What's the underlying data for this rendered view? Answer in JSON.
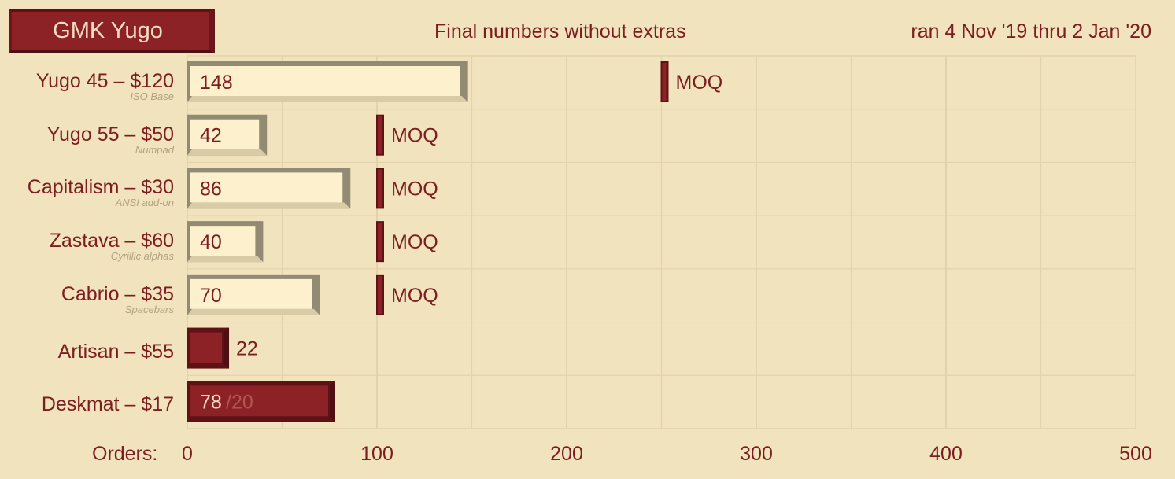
{
  "header": {
    "title": "GMK Yugo",
    "subtitle": "Final numbers without extras",
    "date_range": "ran 4 Nov '19 thru 2 Jan '20"
  },
  "axis": {
    "x_label": "Orders:",
    "ticks": [
      "0",
      "100",
      "200",
      "300",
      "400",
      "500"
    ]
  },
  "colors": {
    "background": "#f1e3bd",
    "bar_light": "#fdf0cc",
    "bar_light_frame": "#938a73",
    "bar_dark": "#8d2226",
    "bar_dark_frame": "#5e1215",
    "moq_marker": "#7c1d1f",
    "grid": "#e3d3aa"
  },
  "chart_data": {
    "type": "bar",
    "orientation": "horizontal",
    "xlim": [
      0,
      500
    ],
    "grid": true,
    "moq_label": "MOQ",
    "categories": [
      {
        "name": "Yugo 45 – $120",
        "sub": "ISO Base",
        "value": 148,
        "moq": 250,
        "style": "light"
      },
      {
        "name": "Yugo 55 – $50",
        "sub": "Numpad",
        "value": 42,
        "moq": 100,
        "style": "light"
      },
      {
        "name": "Capitalism – $30",
        "sub": "ANSI add-on",
        "value": 86,
        "moq": 100,
        "style": "light"
      },
      {
        "name": "Zastava – $60",
        "sub": "Cyrillic alphas",
        "value": 40,
        "moq": 100,
        "style": "light"
      },
      {
        "name": "Cabrio – $35",
        "sub": "Spacebars",
        "value": 70,
        "moq": 100,
        "style": "light"
      },
      {
        "name": "Artisan – $55",
        "sub": "",
        "value": 22,
        "moq": null,
        "style": "dark"
      },
      {
        "name": "Deskmat – $17",
        "sub": "",
        "value": 78,
        "extra": "/20",
        "moq": null,
        "style": "dark"
      }
    ]
  }
}
